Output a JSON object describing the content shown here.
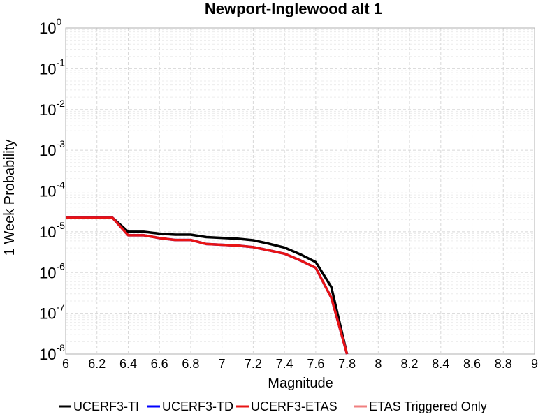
{
  "chart_data": {
    "type": "line",
    "title": "Newport-Inglewood alt 1",
    "xlabel": "Magnitude",
    "ylabel": "1 Week Probability",
    "xlim": [
      6,
      9
    ],
    "ylim": [
      1e-08,
      1
    ],
    "yscale": "log",
    "grid": true,
    "legend_position": "bottom",
    "x_ticks": [
      "6",
      "6.2",
      "6.4",
      "6.6",
      "6.8",
      "7",
      "7.2",
      "7.4",
      "7.6",
      "7.8",
      "8",
      "8.2",
      "8.4",
      "8.6",
      "8.8",
      "9"
    ],
    "y_ticks": [
      {
        "base": "10",
        "exp": "0"
      },
      {
        "base": "10",
        "exp": "-1"
      },
      {
        "base": "10",
        "exp": "-2"
      },
      {
        "base": "10",
        "exp": "-3"
      },
      {
        "base": "10",
        "exp": "-4"
      },
      {
        "base": "10",
        "exp": "-5"
      },
      {
        "base": "10",
        "exp": "-6"
      },
      {
        "base": "10",
        "exp": "-7"
      },
      {
        "base": "10",
        "exp": "-8"
      }
    ],
    "series": [
      {
        "name": "UCERF3-TI",
        "color": "#000000",
        "x": [
          6.0,
          6.1,
          6.2,
          6.3,
          6.4,
          6.5,
          6.6,
          6.7,
          6.8,
          6.9,
          7.0,
          7.1,
          7.2,
          7.3,
          7.4,
          7.5,
          7.6,
          7.7,
          7.8
        ],
        "y": [
          2.2e-05,
          2.2e-05,
          2.2e-05,
          2.2e-05,
          1e-05,
          1e-05,
          9e-06,
          8.5e-06,
          8.5e-06,
          7.4e-06,
          7.1e-06,
          6.8e-06,
          6.2e-06,
          5.1e-06,
          4.1e-06,
          2.8e-06,
          1.8e-06,
          4.4e-07,
          1e-08
        ]
      },
      {
        "name": "UCERF3-TD",
        "color": "#0000ff",
        "x": [
          6.0,
          6.1,
          6.2,
          6.3,
          6.4,
          6.5,
          6.6,
          6.7,
          6.8,
          6.9,
          7.0,
          7.1,
          7.2,
          7.3,
          7.4,
          7.5,
          7.6,
          7.7,
          7.8
        ],
        "y": [
          2.2e-05,
          2.2e-05,
          2.2e-05,
          2.2e-05,
          8.2e-06,
          8.2e-06,
          7e-06,
          6.3e-06,
          6.3e-06,
          5e-06,
          4.8e-06,
          4.6e-06,
          4.2e-06,
          3.5e-06,
          2.9e-06,
          2e-06,
          1.3e-06,
          2.4e-07,
          1e-08
        ]
      },
      {
        "name": "UCERF3-ETAS",
        "color": "#e81414",
        "x": [
          6.0,
          6.1,
          6.2,
          6.3,
          6.4,
          6.5,
          6.6,
          6.7,
          6.8,
          6.9,
          7.0,
          7.1,
          7.2,
          7.3,
          7.4,
          7.5,
          7.6,
          7.7,
          7.8
        ],
        "y": [
          2.2e-05,
          2.2e-05,
          2.2e-05,
          2.2e-05,
          8.2e-06,
          8.2e-06,
          7e-06,
          6.3e-06,
          6.3e-06,
          5e-06,
          4.8e-06,
          4.6e-06,
          4.2e-06,
          3.5e-06,
          2.9e-06,
          2e-06,
          1.3e-06,
          2.4e-07,
          1e-08
        ]
      },
      {
        "name": "ETAS Triggered Only",
        "color": "#f08080",
        "x": [],
        "y": []
      }
    ]
  }
}
